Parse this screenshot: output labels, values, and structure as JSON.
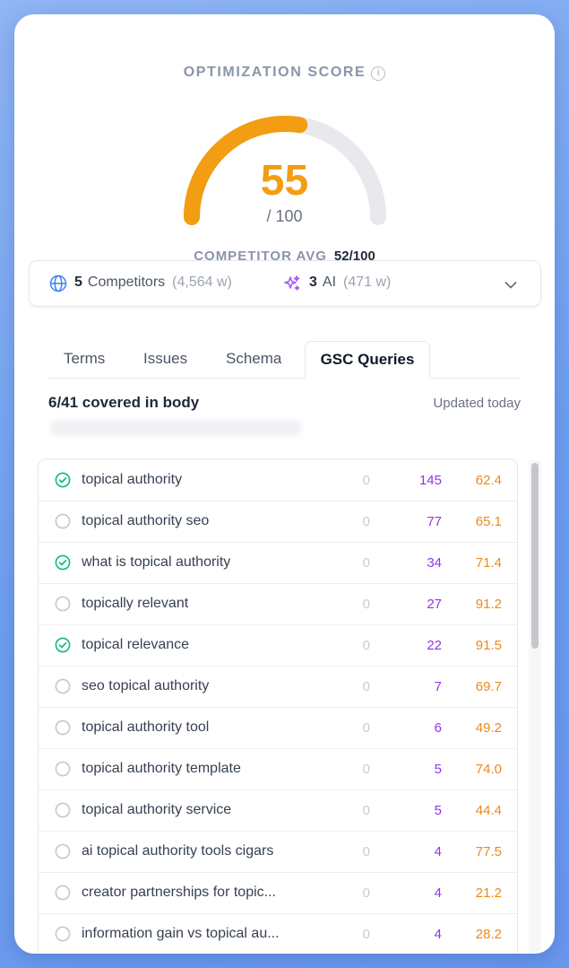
{
  "score": {
    "title": "OPTIMIZATION SCORE",
    "info_glyph": "i",
    "value": "55",
    "max_text": "/ 100",
    "gauge_fraction": 0.55,
    "gauge_color": "#f29d12",
    "competitor_avg_label": "COMPETITOR AVG",
    "competitor_avg_value": "52/100"
  },
  "sources": {
    "competitors_count": "5",
    "competitors_label": "Competitors",
    "competitors_words": "(4,564 w)",
    "ai_count": "3",
    "ai_label": "AI",
    "ai_words": "(471 w)",
    "icons": [
      "globe-icon",
      "sparkle-icon",
      "chevron-down-icon"
    ]
  },
  "tabs": [
    {
      "label": "Terms"
    },
    {
      "label": "Issues"
    },
    {
      "label": "Schema"
    },
    {
      "label": "GSC Queries",
      "active": true
    }
  ],
  "queries": {
    "covered_text": "6/41 covered in body",
    "updated_text": "Updated today",
    "rows": [
      {
        "query": "topical authority",
        "checked": true,
        "col1": "0",
        "col2": "145",
        "col3": "62.4"
      },
      {
        "query": "topical authority seo",
        "checked": false,
        "col1": "0",
        "col2": "77",
        "col3": "65.1"
      },
      {
        "query": "what is topical authority",
        "checked": true,
        "col1": "0",
        "col2": "34",
        "col3": "71.4"
      },
      {
        "query": "topically relevant",
        "checked": false,
        "col1": "0",
        "col2": "27",
        "col3": "91.2"
      },
      {
        "query": "topical relevance",
        "checked": true,
        "col1": "0",
        "col2": "22",
        "col3": "91.5"
      },
      {
        "query": "seo topical authority",
        "checked": false,
        "col1": "0",
        "col2": "7",
        "col3": "69.7"
      },
      {
        "query": "topical authority tool",
        "checked": false,
        "col1": "0",
        "col2": "6",
        "col3": "49.2"
      },
      {
        "query": "topical authority template",
        "checked": false,
        "col1": "0",
        "col2": "5",
        "col3": "74.0"
      },
      {
        "query": "topical authority service",
        "checked": false,
        "col1": "0",
        "col2": "5",
        "col3": "44.4"
      },
      {
        "query": "ai topical authority tools cigars",
        "checked": false,
        "col1": "0",
        "col2": "4",
        "col3": "77.5"
      },
      {
        "query": "creator partnerships for topic...",
        "checked": false,
        "col1": "0",
        "col2": "4",
        "col3": "21.2"
      },
      {
        "query": "information gain vs topical au...",
        "checked": false,
        "col1": "0",
        "col2": "4",
        "col3": "28.2"
      }
    ]
  },
  "colors": {
    "accent": "#f29d12",
    "check_green": "#10b981",
    "impressions_purple": "#9333ea",
    "position_orange": "#ea8a1a"
  }
}
